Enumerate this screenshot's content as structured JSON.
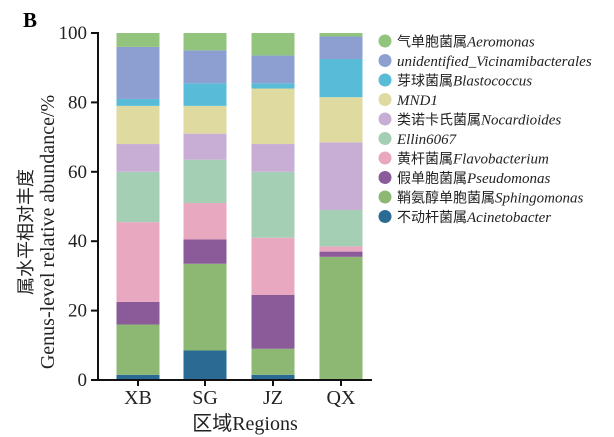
{
  "panel_label": "B",
  "chart_data": {
    "type": "bar",
    "stacked": true,
    "categories": [
      "XB",
      "SG",
      "JZ",
      "QX"
    ],
    "ylabel_cn": "属水平相对丰度",
    "ylabel_en": "Genus-level relative abundance/%",
    "xlabel": "区域Regions",
    "ylim": [
      0,
      100
    ],
    "yticks": [
      0,
      20,
      40,
      60,
      80,
      100
    ],
    "grid": false,
    "legend_position": "right",
    "series": [
      {
        "name_cn": "不动杆菌属",
        "name_latin": "Acinetobacter",
        "color": "#2a6a93",
        "values": [
          1.5,
          8.5,
          1.5,
          0
        ]
      },
      {
        "name_cn": "鞘氨醇单胞菌属",
        "name_latin": "Sphingomonas",
        "color": "#8db873",
        "values": [
          14.5,
          25,
          7.5,
          35.5
        ]
      },
      {
        "name_cn": "假单胞菌属",
        "name_latin": "Pseudomonas",
        "color": "#8a5a99",
        "values": [
          6.5,
          7,
          15.5,
          1.5
        ]
      },
      {
        "name_cn": "黄杆菌属",
        "name_latin": "Flavobacterium",
        "color": "#e8a8c0",
        "values": [
          23,
          10.5,
          16.5,
          1.5
        ]
      },
      {
        "name_cn": "",
        "name_latin": "Ellin6067",
        "color": "#a4cfb4",
        "values": [
          14.5,
          12.5,
          19,
          10.5
        ]
      },
      {
        "name_cn": "类诺卡氏菌属",
        "name_latin": "Nocardioides",
        "color": "#c8aed4",
        "values": [
          8,
          7.5,
          8,
          19.5
        ]
      },
      {
        "name_cn": "",
        "name_latin": "MND1",
        "color": "#dedaa0",
        "values": [
          11,
          8,
          16,
          13
        ]
      },
      {
        "name_cn": "芽球菌属",
        "name_latin": "Blastococcus",
        "color": "#58bcd8",
        "values": [
          2,
          6.5,
          1.5,
          11
        ]
      },
      {
        "name_cn": "",
        "name_latin": "unidentified_Vicinamibacterales",
        "color": "#8c9fd0",
        "values": [
          15,
          9.5,
          8,
          6.5
        ]
      },
      {
        "name_cn": "气单胞菌属",
        "name_latin": "Aeromonas",
        "color": "#93c47d",
        "values": [
          4,
          5,
          6.5,
          1
        ]
      }
    ]
  }
}
